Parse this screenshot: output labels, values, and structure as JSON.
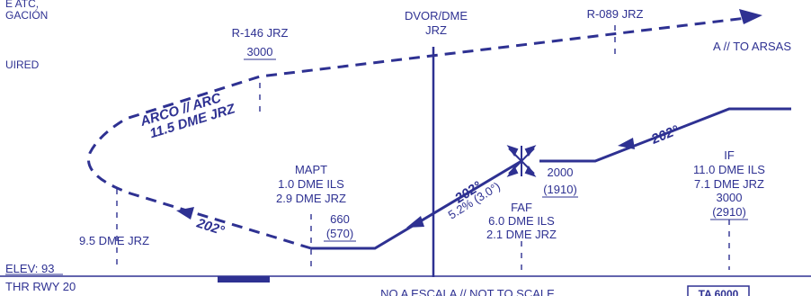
{
  "left_notes": {
    "line1": "E ATC,",
    "line2": "GACIÓN",
    "line3": "UIRED"
  },
  "navaid": {
    "line1": "DVOR/DME",
    "line2": "JRZ"
  },
  "radial_left": {
    "label": "R-146 JRZ",
    "altitude": "3000"
  },
  "radial_right": {
    "label": "R-089 JRZ"
  },
  "missed_dest": "A // TO ARSAS",
  "arc": {
    "line1": "ARCO // ARC",
    "line2": "11.5 DME JRZ"
  },
  "mapt": {
    "title": "MAPT",
    "line1": "1.0 DME ILS",
    "line2": "2.9 DME JRZ",
    "alt": "660",
    "hat": "(570)"
  },
  "faf": {
    "title": "FAF",
    "line1": "6.0 DME ILS",
    "line2": "2.1 DME JRZ",
    "glide": "5.2% (3.0°)",
    "alt": "2000",
    "hat": "(1910)"
  },
  "if_fix": {
    "title": "IF",
    "line1": "11.0 DME ILS",
    "line2": "7.1 DME JRZ",
    "alt": "3000",
    "hat": "(2910)"
  },
  "course_final": "202°",
  "course_inbound": "202°",
  "course_return": "202°",
  "dme_left": "9.5 DME JRZ",
  "elev": "ELEV: 93",
  "thr": "THR RWY 20",
  "scale_note": "NO A ESCALA // NOT TO SCALE",
  "ta_box": "TA 6000",
  "colors": {
    "ink": "#2e3192"
  }
}
